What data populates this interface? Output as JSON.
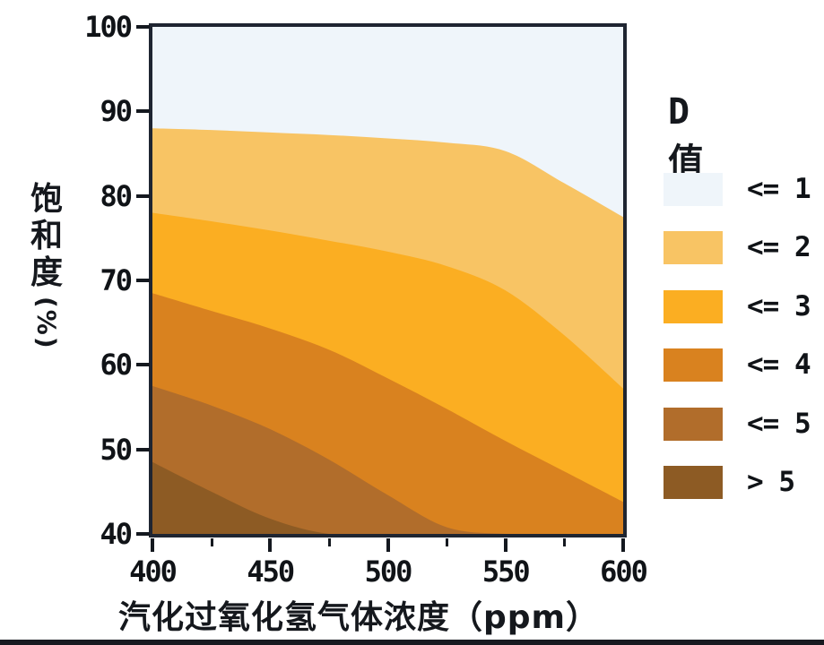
{
  "figure": {
    "y_axis": {
      "label": "饱和度",
      "unit": "(%)",
      "tick_labels": [
        "100",
        "90",
        "80",
        "70",
        "60",
        "50",
        "40"
      ]
    },
    "x_axis": {
      "title": "汽化过氧化氢气体浓度（ppm）",
      "tick_labels": [
        "400",
        "450",
        "500",
        "550",
        "600"
      ]
    },
    "legend": {
      "title": "D值",
      "entries": [
        {
          "label": "<= 1",
          "color": "#eff5fa"
        },
        {
          "label": "<= 2",
          "color": "#f8c464"
        },
        {
          "label": "<= 3",
          "color": "#fbae22"
        },
        {
          "label": "<= 4",
          "color": "#d9821f"
        },
        {
          "label": "<= 5",
          "color": "#b16d2b"
        },
        {
          "label": "> 5",
          "color": "#8d5b24"
        }
      ]
    }
  },
  "chart_data": {
    "type": "heatmap",
    "subtype": "filled-contour",
    "title": "",
    "xlabel": "汽化过氧化氢气体浓度（ppm）",
    "ylabel": "饱和度(%)",
    "xlim": [
      400,
      600
    ],
    "ylim": [
      40,
      100
    ],
    "x_ticks": [
      400,
      450,
      500,
      550,
      600
    ],
    "x_minor_ticks": [
      425,
      475,
      525,
      575
    ],
    "y_ticks": [
      100,
      90,
      80,
      70,
      60,
      50,
      40
    ],
    "grid": false,
    "legend_title": "D值",
    "legend_position": "right",
    "bands": [
      {
        "label": "<= 1",
        "color": "#eff5fa"
      },
      {
        "label": "<= 2",
        "color": "#f8c464"
      },
      {
        "label": "<= 3",
        "color": "#fbae22"
      },
      {
        "label": "<= 4",
        "color": "#d9821f"
      },
      {
        "label": "<= 5",
        "color": "#b16d2b"
      },
      {
        "label": "> 5",
        "color": "#8d5b24"
      }
    ],
    "x_samples_ppm": [
      400,
      425,
      450,
      475,
      500,
      525,
      550,
      575,
      600
    ],
    "contour_levels": [
      {
        "D": 1,
        "saturation_pct": [
          88.0,
          87.8,
          87.5,
          87.2,
          86.8,
          86.3,
          85.3,
          81.5,
          77.5
        ]
      },
      {
        "D": 2,
        "saturation_pct": [
          78.0,
          77.0,
          75.9,
          74.7,
          73.4,
          71.7,
          68.8,
          63.5,
          57.2
        ]
      },
      {
        "D": 3,
        "saturation_pct": [
          68.5,
          66.4,
          64.3,
          61.8,
          58.4,
          54.8,
          51.0,
          47.4,
          43.8
        ]
      },
      {
        "D": 4,
        "saturation_pct": [
          57.5,
          55.2,
          52.4,
          48.8,
          44.6,
          40.8,
          37.5,
          34.5,
          32.0
        ]
      },
      {
        "D": 5,
        "saturation_pct": [
          48.5,
          45.0,
          41.8,
          38.5,
          35.5,
          33.0,
          30.5,
          28.0,
          26.0
        ]
      }
    ],
    "note": "Band k fills between contour D=k-1 and D=k; saturation values below ylim are clipped at 40."
  }
}
